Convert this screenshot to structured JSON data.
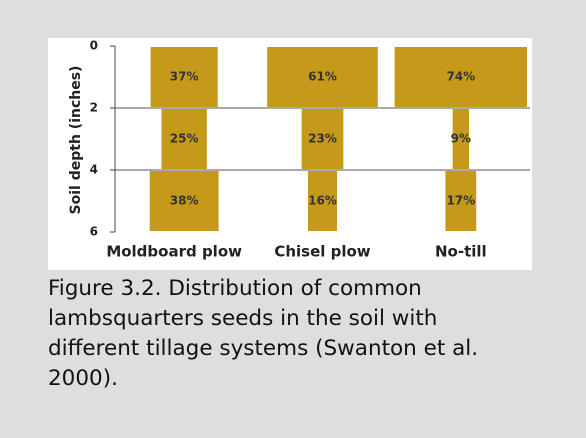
{
  "chart_data": {
    "type": "bar",
    "y_label": "Soil depth (inches)",
    "categories": [
      "Moldboard plow",
      "Chisel plow",
      "No-till"
    ],
    "series": [
      {
        "color": "#c59a1b",
        "values": [
          37,
          61,
          74
        ],
        "value_labels": [
          "37%",
          "61%",
          "74%"
        ]
      },
      {
        "color": "#c59a1b",
        "values": [
          25,
          23,
          9
        ],
        "value_labels": [
          "25%",
          "23%",
          "9%"
        ]
      },
      {
        "color": "#c59a1b",
        "values": [
          38,
          16,
          17
        ],
        "value_labels": [
          "38%",
          "16%",
          "17%"
        ]
      }
    ],
    "ylim": [
      0,
      6
    ],
    "yticks": [
      0,
      2,
      4,
      6
    ],
    "grid": true,
    "caption_lines": [
      "Figure 3.2. Distribution of common",
      "lambsquarters seeds in the soil with",
      "different tillage systems (Swanton et al.",
      "2000)."
    ]
  }
}
